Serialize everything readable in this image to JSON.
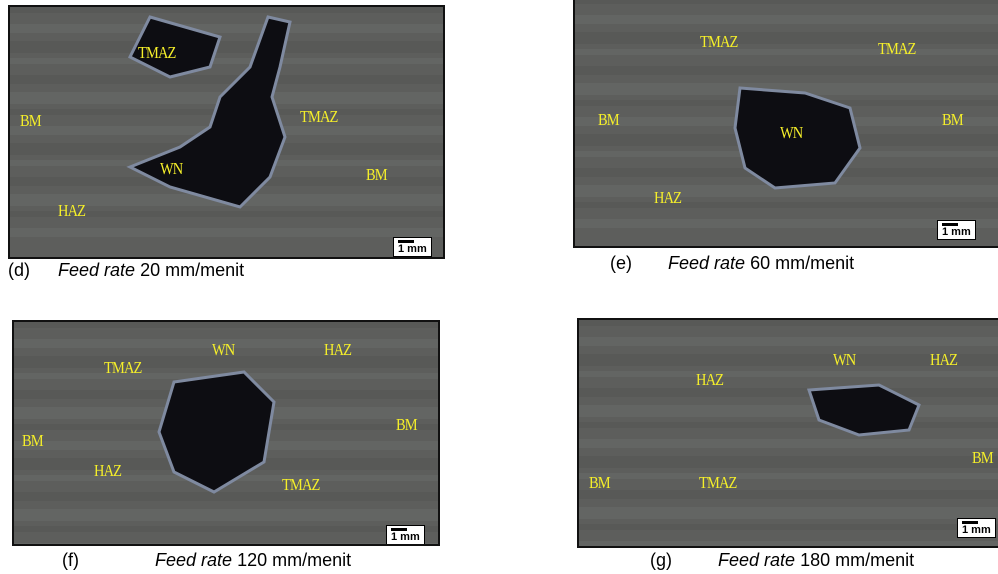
{
  "panels": [
    {
      "caption": {
        "letter": "(d)",
        "italic": "Feed rate",
        "text": "20 mm/menit"
      },
      "scale_bar": "1 mm",
      "labels": [
        "TMAZ",
        "BM",
        "TMAZ",
        "WN",
        "BM",
        "HAZ"
      ]
    },
    {
      "caption": {
        "letter": "(e)",
        "italic": "Feed rate",
        "text": "60 mm/menit"
      },
      "scale_bar": "1 mm",
      "labels": [
        "TMAZ",
        "TMAZ",
        "BM",
        "WN",
        "BM",
        "HAZ"
      ]
    },
    {
      "caption": {
        "letter": "(f)",
        "italic": "Feed rate",
        "text": "120 mm/menit"
      },
      "scale_bar": "1 mm",
      "labels": [
        "WN",
        "HAZ",
        "TMAZ",
        "BM",
        "BM",
        "HAZ",
        "TMAZ"
      ]
    },
    {
      "caption": {
        "letter": "(g)",
        "italic": "Feed rate",
        "text": "180 mm/menit"
      },
      "scale_bar": "1 mm",
      "labels": [
        "WN",
        "HAZ",
        "HAZ",
        "BM",
        "BM",
        "TMAZ"
      ]
    }
  ]
}
